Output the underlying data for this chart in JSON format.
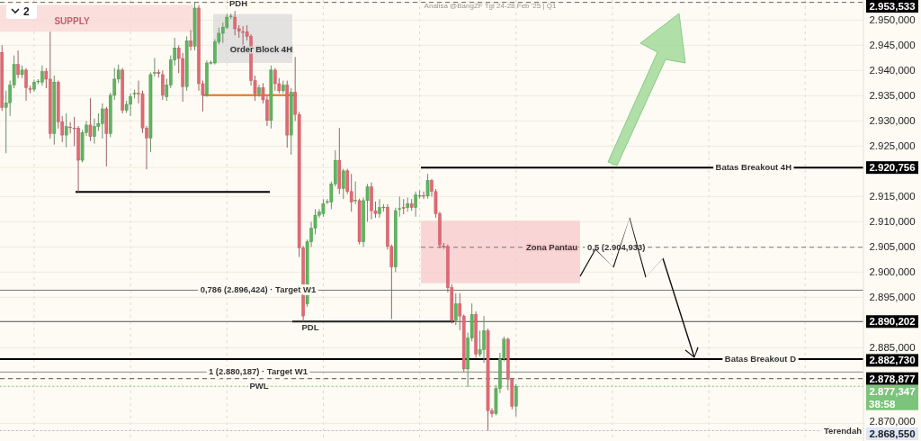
{
  "chart_data": {
    "type": "candlestick",
    "title": "Analisa @BangZF Tgl 24-28 Feb '25 | Q1",
    "categories": [
      null,
      null,
      null,
      null,
      null,
      null,
      null,
      null,
      null,
      null,
      null,
      null,
      null,
      null,
      null,
      null,
      null,
      null,
      null,
      null,
      null,
      null,
      null,
      null,
      null,
      null,
      null,
      null,
      null,
      null,
      null,
      null,
      null,
      null,
      null,
      null,
      null,
      null,
      null,
      null,
      null,
      null,
      null,
      null,
      null,
      null,
      null,
      null,
      null,
      null,
      null,
      null,
      null,
      null,
      null,
      null,
      null,
      null,
      null,
      null,
      null,
      null,
      null,
      null,
      null,
      null,
      null,
      null,
      null,
      null,
      null,
      null,
      null,
      null,
      null,
      null,
      null,
      null,
      null,
      null,
      null,
      null,
      null,
      null,
      null,
      null,
      null,
      null,
      null,
      null,
      null,
      null,
      null,
      null,
      null,
      null,
      null,
      null,
      null,
      null,
      null,
      null,
      null,
      null,
      null,
      null,
      null,
      null,
      null,
      null,
      null,
      null,
      null,
      null,
      null,
      null,
      null,
      null,
      null,
      null,
      null,
      null,
      null,
      null,
      null,
      null,
      null,
      null,
      null,
      null,
      null,
      null,
      null,
      null,
      null,
      null,
      null,
      null,
      null,
      null,
      null,
      null,
      null,
      null,
      null,
      null,
      null,
      null,
      null,
      null,
      null,
      null,
      null,
      null,
      null,
      null,
      null,
      null,
      null,
      null,
      null,
      null,
      null,
      null,
      null,
      null,
      null,
      null,
      null,
      null,
      null,
      null,
      null,
      null,
      null,
      null,
      null,
      null,
      null,
      null,
      null,
      null,
      null,
      null,
      null,
      null,
      null,
      null,
      null,
      null,
      null,
      null,
      null,
      null,
      null,
      null,
      null,
      null,
      null,
      null,
      null,
      null,
      null,
      null,
      null,
      null,
      null,
      null,
      null,
      null,
      null,
      null,
      null,
      null,
      null
    ],
    "ohlc": [
      [
        2943.6,
        2945.0,
        2932.0,
        2932.7
      ],
      [
        2932.7,
        2936.0,
        2923.6,
        2933.6
      ],
      [
        2933.6,
        2938.0,
        2931.0,
        2937.1
      ],
      [
        2937.1,
        2943.0,
        2936.5,
        2941.2
      ],
      [
        2941.2,
        2944.0,
        2938.5,
        2939.2
      ],
      [
        2939.2,
        2941.0,
        2938.5,
        2940.1
      ],
      [
        2940.1,
        2940.5,
        2934.0,
        2936.6
      ],
      [
        2936.4,
        2937.0,
        2935.5,
        2936.3
      ],
      [
        2936.3,
        2938.2,
        2935.8,
        2937.7
      ],
      [
        2937.8,
        2938.3,
        2937.3,
        2937.9
      ],
      [
        2937.7,
        2941.0,
        2937.0,
        2939.8
      ],
      [
        2939.8,
        2940.5,
        2936.5,
        2938.3
      ],
      [
        2938.3,
        2947.7,
        2926.5,
        2927.5
      ],
      [
        2927.5,
        2939.0,
        2925.3,
        2937.7
      ],
      [
        2937.7,
        2938.0,
        2928.5,
        2929.8
      ],
      [
        2929.8,
        2931.0,
        2925.8,
        2927.2
      ],
      [
        2927.2,
        2931.5,
        2924.8,
        2928.9
      ],
      [
        2928.8,
        2929.8,
        2927.5,
        2928.7
      ],
      [
        2928.6,
        2930.8,
        2925.0,
        2928.5
      ],
      [
        2928.6,
        2929.0,
        2915.9,
        2922.2
      ],
      [
        2922.2,
        2928.2,
        2921.8,
        2927.7
      ],
      [
        2927.7,
        2930.0,
        2927.0,
        2929.2
      ],
      [
        2929.2,
        2934.5,
        2926.0,
        2926.9
      ],
      [
        2926.9,
        2930.5,
        2925.5,
        2928.9
      ],
      [
        2928.9,
        2931.5,
        2928.0,
        2929.5
      ],
      [
        2929.5,
        2933.5,
        2926.5,
        2932.4
      ],
      [
        2932.4,
        2932.8,
        2921.0,
        2927.5
      ],
      [
        2927.5,
        2935.6,
        2926.8,
        2935.1
      ],
      [
        2935.1,
        2940.5,
        2934.2,
        2938.3
      ],
      [
        2938.3,
        2941.2,
        2937.5,
        2940.1
      ],
      [
        2940.1,
        2940.5,
        2931.5,
        2932.1
      ],
      [
        2932.1,
        2934.0,
        2931.6,
        2933.3
      ],
      [
        2933.3,
        2935.5,
        2931.0,
        2934.8
      ],
      [
        2935.4,
        2936.2,
        2934.5,
        2935.5
      ],
      [
        2935.5,
        2938.0,
        2933.5,
        2935.4
      ],
      [
        2935.4,
        2936.0,
        2927.6,
        2928.6
      ],
      [
        2928.6,
        2929.0,
        2920.4,
        2926.6
      ],
      [
        2926.6,
        2939.6,
        2923.8,
        2939.2
      ],
      [
        2939.5,
        2942.5,
        2938.8,
        2939.6
      ],
      [
        2939.6,
        2940.2,
        2938.6,
        2939.4
      ],
      [
        2939.2,
        2940.0,
        2934.2,
        2935.1
      ],
      [
        2934.8,
        2938.4,
        2934.0,
        2937.1
      ],
      [
        2937.1,
        2943.0,
        2936.5,
        2942.1
      ],
      [
        2942.1,
        2946.5,
        2941.0,
        2944.5
      ],
      [
        2944.5,
        2945.0,
        2939.5,
        2942.4
      ],
      [
        2942.4,
        2943.5,
        2933.8,
        2936.8
      ],
      [
        2936.8,
        2946.8,
        2936.0,
        2945.9
      ],
      [
        2945.9,
        2948.0,
        2944.0,
        2944.8
      ],
      [
        2944.8,
        2953.5,
        2944.0,
        2952.4
      ],
      [
        2952.4,
        2953.0,
        2936.0,
        2937.4
      ],
      [
        2937.4,
        2938.0,
        2931.9,
        2935.1
      ],
      [
        2935.1,
        2942.0,
        2934.8,
        2941.5
      ],
      [
        2941.5,
        2942.0,
        2941.2,
        2941.6
      ],
      [
        2941.5,
        2946.2,
        2941.2,
        2945.7
      ],
      [
        2945.7,
        2948.5,
        2945.2,
        2947.4
      ],
      [
        2947.4,
        2949.5,
        2945.5,
        2948.6
      ],
      [
        2948.6,
        2951.2,
        2948.2,
        2950.6
      ],
      [
        2950.7,
        2951.3,
        2950.2,
        2950.8
      ],
      [
        2950.6,
        2951.8,
        2947.0,
        2948.3
      ],
      [
        2948.3,
        2949.0,
        2946.5,
        2947.8
      ],
      [
        2947.7,
        2948.8,
        2944.5,
        2947.6
      ],
      [
        2947.7,
        2949.0,
        2946.0,
        2946.8
      ],
      [
        2946.8,
        2947.2,
        2937.0,
        2938.0
      ],
      [
        2938.0,
        2939.0,
        2934.0,
        2935.4
      ],
      [
        2935.4,
        2937.2,
        2934.8,
        2936.6
      ],
      [
        2936.6,
        2937.5,
        2933.5,
        2934.2
      ],
      [
        2934.2,
        2935.0,
        2929.0,
        2930.1
      ],
      [
        2930.1,
        2941.0,
        2928.5,
        2940.1
      ],
      [
        2940.1,
        2940.5,
        2936.0,
        2937.4
      ],
      [
        2937.4,
        2938.5,
        2935.5,
        2936.0
      ],
      [
        2936.0,
        2938.0,
        2935.5,
        2937.1
      ],
      [
        2937.1,
        2938.0,
        2924.7,
        2927.2
      ],
      [
        2927.2,
        2936.5,
        2923.3,
        2935.7
      ],
      [
        2935.7,
        2942.7,
        2930.0,
        2931.3
      ],
      [
        2931.3,
        2931.8,
        2903.0,
        2904.8
      ],
      [
        2904.8,
        2905.2,
        2890.2,
        2891.3
      ],
      [
        2893.7,
        2906.5,
        2893.1,
        2906.0
      ],
      [
        2906.0,
        2910.0,
        2905.0,
        2908.7
      ],
      [
        2908.7,
        2912.5,
        2907.5,
        2911.3
      ],
      [
        2911.3,
        2912.5,
        2910.8,
        2911.9
      ],
      [
        2911.6,
        2914.5,
        2911.0,
        2913.6
      ],
      [
        2913.9,
        2914.5,
        2913.5,
        2914.0
      ],
      [
        2913.9,
        2918.0,
        2912.5,
        2917.5
      ],
      [
        2917.5,
        2924.2,
        2917.0,
        2922.2
      ],
      [
        2922.2,
        2928.6,
        2915.5,
        2916.6
      ],
      [
        2916.6,
        2920.5,
        2914.5,
        2920.1
      ],
      [
        2920.1,
        2920.5,
        2915.5,
        2916.0
      ],
      [
        2916.0,
        2919.5,
        2912.0,
        2913.9
      ],
      [
        2914.2,
        2918.0,
        2913.5,
        2914.3
      ],
      [
        2914.2,
        2914.6,
        2905.5,
        2906.0
      ],
      [
        2906.0,
        2914.8,
        2905.0,
        2914.2
      ],
      [
        2914.2,
        2917.5,
        2910.0,
        2916.9
      ],
      [
        2916.9,
        2917.8,
        2910.5,
        2912.2
      ],
      [
        2912.2,
        2914.0,
        2910.8,
        2911.6
      ],
      [
        2911.6,
        2914.5,
        2910.8,
        2912.8
      ],
      [
        2912.8,
        2913.5,
        2912.0,
        2912.9
      ],
      [
        2912.9,
        2913.5,
        2904.5,
        2905.1
      ],
      [
        2905.1,
        2905.5,
        2890.7,
        2901.0
      ],
      [
        2901.0,
        2912.8,
        2900.0,
        2912.2
      ],
      [
        2912.5,
        2915.0,
        2911.0,
        2912.6
      ],
      [
        2912.8,
        2914.5,
        2911.5,
        2912.7
      ],
      [
        2912.8,
        2914.8,
        2912.0,
        2913.6
      ],
      [
        2913.6,
        2914.5,
        2912.2,
        2912.8
      ],
      [
        2912.8,
        2916.0,
        2911.0,
        2915.3
      ],
      [
        2915.1,
        2916.2,
        2914.6,
        2915.2
      ],
      [
        2915.2,
        2916.0,
        2914.5,
        2915.1
      ],
      [
        2915.1,
        2919.5,
        2914.6,
        2918.2
      ],
      [
        2918.2,
        2918.5,
        2915.0,
        2916.0
      ],
      [
        2916.0,
        2916.5,
        2910.8,
        2911.6
      ],
      [
        2911.6,
        2912.0,
        2904.8,
        2905.4
      ],
      [
        2905.2,
        2905.8,
        2904.6,
        2905.0
      ],
      [
        2905.1,
        2905.5,
        2896.0,
        2896.9
      ],
      [
        2896.9,
        2897.6,
        2889.8,
        2890.4
      ],
      [
        2890.4,
        2895.8,
        2889.5,
        2893.7
      ],
      [
        2893.7,
        2895.8,
        2888.5,
        2891.3
      ],
      [
        2891.3,
        2891.6,
        2880.2,
        2880.8
      ],
      [
        2880.8,
        2888.0,
        2877.2,
        2886.9
      ],
      [
        2886.9,
        2893.8,
        2886.3,
        2891.6
      ],
      [
        2891.6,
        2892.2,
        2883.0,
        2883.7
      ],
      [
        2883.7,
        2888.4,
        2883.2,
        2884.6
      ],
      [
        2884.6,
        2891.3,
        2882.0,
        2888.4
      ],
      [
        2888.4,
        2888.8,
        2868.55,
        2872.5
      ],
      [
        2872.5,
        2873.0,
        2871.2,
        2871.9
      ],
      [
        2871.9,
        2877.6,
        2871.6,
        2876.9
      ],
      [
        2876.9,
        2884.0,
        2876.0,
        2882.8
      ],
      [
        2882.8,
        2887.2,
        2882.3,
        2886.7
      ],
      [
        2886.7,
        2887.0,
        2876.6,
        2878.7
      ],
      [
        2878.7,
        2879.0,
        2872.8,
        2873.4
      ],
      [
        2873.4,
        2877.8,
        2871.4,
        2877.347
      ],
      null,
      null,
      null,
      null,
      null,
      null,
      null,
      null,
      null,
      null,
      null,
      null,
      null,
      null,
      null,
      null,
      null,
      null,
      null,
      null,
      null,
      null,
      null,
      null,
      null,
      null,
      null,
      null,
      null,
      null,
      null,
      null,
      null,
      null,
      null,
      null,
      null,
      null,
      null,
      null,
      null,
      null,
      null,
      null,
      null,
      null,
      null,
      null,
      null,
      null,
      null,
      null,
      null,
      null,
      null,
      null,
      null,
      null,
      null,
      null,
      null,
      null,
      null,
      null,
      null,
      null,
      null,
      null,
      null,
      null,
      null,
      null,
      null,
      null,
      null,
      null,
      null,
      null,
      null,
      null,
      null,
      null,
      null,
      null,
      null,
      null
    ],
    "ylim": [
      2866.5,
      2954
    ],
    "yticks": [
      {
        "value": 2953.533,
        "label": "2.953,533"
      },
      {
        "value": 2950,
        "label": "2.950,000"
      },
      {
        "value": 2945,
        "label": "2.945,000"
      },
      {
        "value": 2940,
        "label": "2.940,000"
      },
      {
        "value": 2935,
        "label": "2.935,000"
      },
      {
        "value": 2930,
        "label": "2.930,000"
      },
      {
        "value": 2925,
        "label": "2.925,000"
      },
      {
        "value": 2920.756,
        "label": "2.920,756"
      },
      {
        "value": 2915,
        "label": "2.915,000"
      },
      {
        "value": 2910,
        "label": "2.910,000"
      },
      {
        "value": 2905,
        "label": "2.905,000"
      },
      {
        "value": 2900,
        "label": "2.900,000"
      },
      {
        "value": 2895,
        "label": "2.895,000"
      },
      {
        "value": 2890.202,
        "label": "2.890,202"
      },
      {
        "value": 2885,
        "label": "2.885,000"
      },
      {
        "value": 2882.73,
        "label": "2.882,730"
      },
      {
        "value": 2878.877,
        "label": "2.878,877"
      },
      {
        "value": 2877.347,
        "label": "2.877,347"
      },
      {
        "value": 2870,
        "label": "2.870,000"
      },
      {
        "value": 2868.55,
        "label": "2.868,550"
      }
    ],
    "grid": true,
    "ref_lines": [
      {
        "axis": "y",
        "value": 2953.533,
        "label": "PDH",
        "line_style": "dashed",
        "color": "#666666"
      },
      {
        "axis": "y",
        "value": 2920.756,
        "label": "Batas Breakout 4H",
        "color": "#000000"
      },
      {
        "axis": "y",
        "value": 2904.933,
        "label": "0,5 (2.904,933)",
        "line_style": "dashed",
        "color": "#777777"
      },
      {
        "axis": "y",
        "value": 2896.424,
        "label": "0,786 (2.896,424) · Target W1",
        "color": "#777777"
      },
      {
        "axis": "y",
        "value": 2890.202,
        "label": "PDL",
        "color": "#555555"
      },
      {
        "axis": "y",
        "value": 2882.73,
        "label": "Batas Breakout D",
        "color": "#000000"
      },
      {
        "axis": "y",
        "value": 2880.187,
        "label": "1 (2.880,187) · Target W1",
        "color": "#888888"
      },
      {
        "axis": "y",
        "value": 2878.877,
        "label": "PWL",
        "line_style": "dashed",
        "color": "#555555"
      },
      {
        "axis": "y",
        "value": 2877.347,
        "line_style": "dotted",
        "color": "#6dbf6d"
      },
      {
        "axis": "y",
        "value": 2868.55,
        "label": "Terendah",
        "line_style": "dotted",
        "color": "#a9b4e0"
      },
      {
        "axis": "y",
        "value": 2935.1,
        "color": "#e8701a"
      },
      {
        "axis": "y",
        "value": 2915.9,
        "color": "#000000"
      }
    ],
    "bands": [
      {
        "axis": "y",
        "from": 2947.7,
        "to": 2953.0,
        "label": "SUPPLY",
        "color": "#f9d6d6"
      },
      {
        "axis": "y",
        "from": 2941.5,
        "to": 2951.2,
        "label": "Order Block 4H",
        "color": "#d9d9d9"
      },
      {
        "axis": "y",
        "from": 2897.8,
        "to": 2910.2,
        "label": "Zona Pantau",
        "color": "#f8c8cc"
      }
    ],
    "annotations": [
      "38:58",
      "2"
    ]
  }
}
